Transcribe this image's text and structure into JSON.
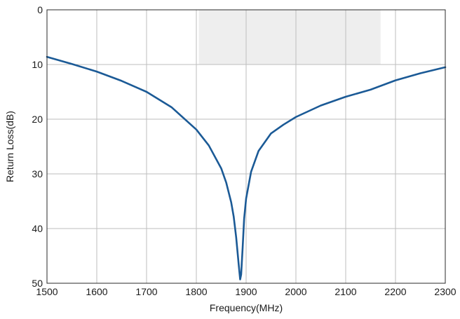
{
  "chart_data": {
    "type": "line",
    "title": "",
    "xlabel": "Frequency(MHz)",
    "ylabel": "Return Loss(dB)",
    "xlim": [
      1500,
      2300
    ],
    "ylim": [
      0,
      50
    ],
    "y_inverted": true,
    "grid": true,
    "x_ticks": [
      1500,
      1600,
      1700,
      1800,
      1900,
      2000,
      2100,
      2200,
      2300
    ],
    "y_ticks": [
      0,
      10,
      20,
      30,
      40,
      50
    ],
    "x_tick_labels": [
      "1500",
      "1600",
      "1700",
      "1800",
      "1900",
      "2000",
      "2100",
      "2200",
      "2300"
    ],
    "y_tick_labels": [
      "0",
      "10",
      "20",
      "30",
      "40",
      "50"
    ],
    "shaded_region": {
      "x": [
        1805,
        2170
      ],
      "y": [
        0,
        10
      ]
    },
    "series": [
      {
        "color": "#1b5a96",
        "x": [
          1500,
          1550,
          1600,
          1650,
          1700,
          1750,
          1800,
          1825,
          1850,
          1860,
          1870,
          1875,
          1880,
          1885,
          1888,
          1890,
          1893,
          1896,
          1900,
          1910,
          1925,
          1950,
          1975,
          2000,
          2050,
          2100,
          2150,
          2200,
          2250,
          2300
        ],
        "y": [
          8.6,
          9.9,
          11.3,
          13.0,
          15.0,
          17.8,
          21.9,
          24.8,
          29.0,
          31.6,
          35.2,
          37.8,
          41.6,
          46.5,
          49.3,
          48.4,
          43.5,
          38.2,
          34.5,
          29.6,
          25.8,
          22.6,
          21.0,
          19.6,
          17.5,
          15.9,
          14.6,
          12.9,
          11.6,
          10.5
        ]
      }
    ]
  },
  "colors": {
    "line": "#1b5a96",
    "band": "#eeeeee",
    "grid": "#bdbdbd"
  }
}
